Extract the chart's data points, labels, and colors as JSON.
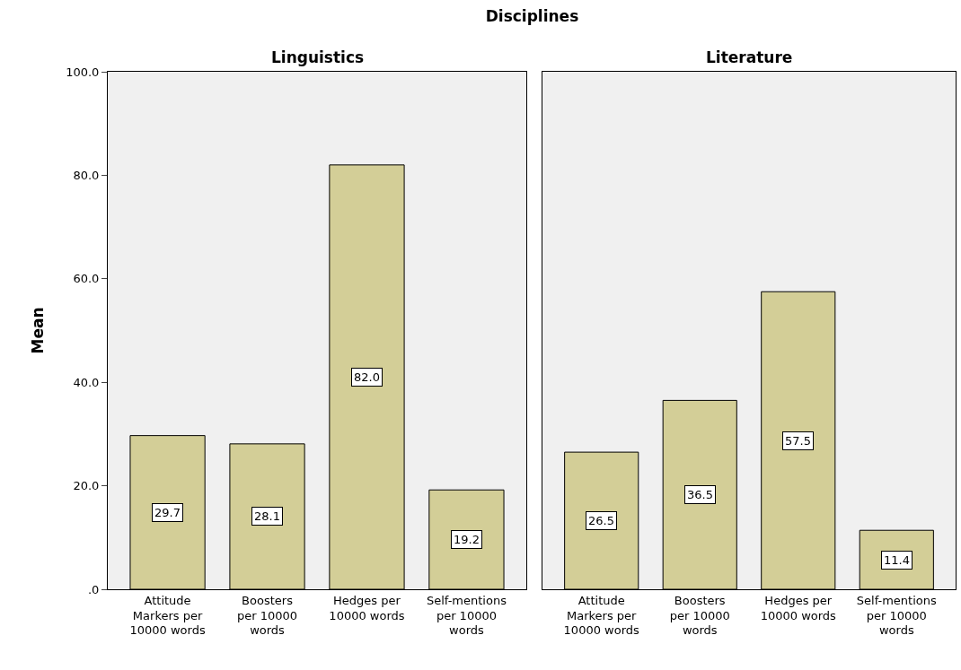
{
  "chart_data": [
    {
      "type": "bar",
      "title": "Disciplines",
      "subtitle": "Linguistics",
      "ylabel": "Mean",
      "categories": [
        "Attitude Markers per 10000 words",
        "Boosters per 10000 words",
        "Hedges per 10000 words",
        "Self-mentions per 10000 words"
      ],
      "values": [
        29.7,
        28.1,
        82.0,
        19.2
      ],
      "value_labels": [
        "29.7",
        "28.1",
        "82.0",
        "19.2"
      ],
      "color": "#d3ce97",
      "ylim": [
        0,
        100
      ],
      "yticks": [
        {
          "value": 0,
          "label": ".0"
        },
        {
          "value": 20,
          "label": "20.0"
        },
        {
          "value": 40,
          "label": "40.0"
        },
        {
          "value": 60,
          "label": "60.0"
        },
        {
          "value": 80,
          "label": "80.0"
        },
        {
          "value": 100,
          "label": "100.0"
        }
      ],
      "grid": false
    },
    {
      "type": "bar",
      "subtitle": "Literature",
      "categories": [
        "Attitude Markers per 10000 words",
        "Boosters per 10000 words",
        "Hedges per 10000 words",
        "Self-mentions per 10000 words"
      ],
      "values": [
        26.5,
        36.5,
        57.5,
        11.4
      ],
      "value_labels": [
        "26.5",
        "36.5",
        "57.5",
        "11.4"
      ],
      "color": "#d3ce97",
      "ylim": [
        0,
        100
      ],
      "tick_labels": "x",
      "grid": false
    }
  ]
}
